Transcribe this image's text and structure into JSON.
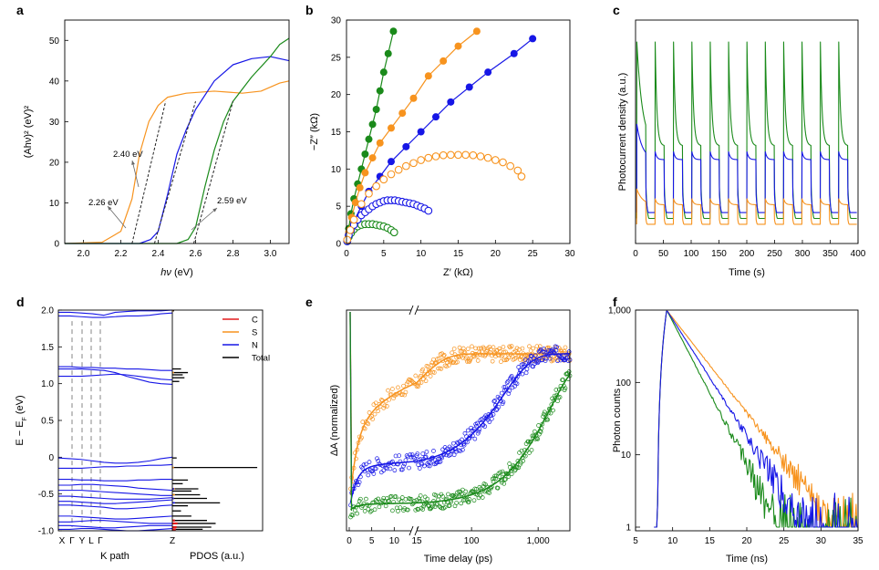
{
  "colors": {
    "green": "#1a8a1a",
    "orange": "#f7931e",
    "blue": "#1616e6",
    "red": "#e31a1c",
    "black": "#000000"
  },
  "chart_data": [
    {
      "panel": "a",
      "type": "line",
      "xlabel_italic": "hν",
      "xlabel_unit": " (eV)",
      "ylabel": "(Ahν)² (eV)²",
      "xlim": [
        1.9,
        3.1
      ],
      "ylim": [
        0,
        55
      ],
      "xticks": [
        "2.0",
        "2.2",
        "2.4",
        "2.6",
        "2.8",
        "3.0"
      ],
      "yticks": [
        "0",
        "10",
        "20",
        "30",
        "40",
        "50"
      ],
      "annotations": [
        "2.26 eV",
        "2.40 eV",
        "2.59 eV"
      ],
      "series": [
        {
          "name": "orange",
          "color": "orange",
          "x": [
            1.9,
            2.1,
            2.2,
            2.26,
            2.3,
            2.35,
            2.4,
            2.45,
            2.55,
            2.7,
            2.85,
            2.95,
            3.05,
            3.1
          ],
          "y": [
            0,
            0.3,
            3,
            11,
            22,
            30,
            34,
            36,
            37,
            37.5,
            37,
            37.5,
            39.5,
            40
          ]
        },
        {
          "name": "blue",
          "color": "blue",
          "x": [
            1.9,
            2.3,
            2.36,
            2.4,
            2.45,
            2.5,
            2.55,
            2.6,
            2.7,
            2.8,
            2.9,
            3.0,
            3.05,
            3.1
          ],
          "y": [
            0,
            0,
            1,
            3,
            12,
            22,
            28,
            33,
            40,
            44,
            45.5,
            46,
            45.5,
            45
          ]
        },
        {
          "name": "green",
          "color": "green",
          "x": [
            1.9,
            2.5,
            2.56,
            2.6,
            2.65,
            2.7,
            2.75,
            2.8,
            2.9,
            3.0,
            3.05,
            3.1
          ],
          "y": [
            0,
            0,
            1,
            4,
            14,
            23,
            30,
            35,
            41,
            46,
            49,
            50.5
          ]
        }
      ],
      "tangents": [
        {
          "color": "black",
          "x": [
            2.26,
            2.44
          ],
          "y": [
            0,
            35
          ]
        },
        {
          "color": "black",
          "x": [
            2.38,
            2.6
          ],
          "y": [
            0,
            35
          ]
        },
        {
          "color": "black",
          "x": [
            2.59,
            2.8
          ],
          "y": [
            0,
            35
          ]
        }
      ]
    },
    {
      "panel": "b",
      "type": "scatter",
      "xlabel": "Z′ (kΩ)",
      "ylabel": "−Z″ (kΩ)",
      "xlim": [
        0,
        30
      ],
      "ylim": [
        0,
        30
      ],
      "xticks": [
        "0",
        "5",
        "10",
        "15",
        "20",
        "25",
        "30"
      ],
      "yticks": [
        "0",
        "5",
        "10",
        "15",
        "20",
        "25",
        "30"
      ],
      "filled": [
        {
          "color": "green",
          "x": [
            0.3,
            0.6,
            1,
            1.5,
            2,
            2.5,
            3,
            3.5,
            4,
            4.5,
            5,
            5.6,
            6.3
          ],
          "y": [
            2,
            4,
            6,
            8,
            10,
            12,
            14,
            16,
            18,
            20.5,
            23,
            25.5,
            28.5
          ]
        },
        {
          "color": "orange",
          "x": [
            0.3,
            0.7,
            1.2,
            1.8,
            2.5,
            3.5,
            4.5,
            6,
            7.5,
            9,
            11,
            13,
            15,
            17.5
          ],
          "y": [
            1.5,
            3.5,
            5.5,
            7.5,
            9.5,
            11.5,
            13.5,
            15.5,
            17.5,
            19.5,
            22.5,
            24.5,
            26.5,
            28.5
          ]
        },
        {
          "color": "blue",
          "x": [
            0.3,
            1,
            2,
            3,
            4.5,
            6,
            8,
            10,
            12,
            14,
            16.5,
            19,
            22.5,
            25
          ],
          "y": [
            1,
            3,
            5,
            7,
            9,
            11,
            13,
            15,
            17,
            19,
            21,
            23,
            25.5,
            27.5
          ]
        }
      ],
      "open": [
        {
          "color": "green",
          "x": [
            0.1,
            0.3,
            0.6,
            1,
            1.5,
            2,
            2.5,
            3,
            3.5,
            4,
            4.5,
            5,
            5.5,
            6,
            6.4
          ],
          "y": [
            0.3,
            0.9,
            1.4,
            1.9,
            2.3,
            2.5,
            2.6,
            2.6,
            2.6,
            2.5,
            2.4,
            2.3,
            2.1,
            1.8,
            1.5
          ]
        },
        {
          "color": "blue",
          "x": [
            0.1,
            0.3,
            0.6,
            1,
            1.5,
            2,
            2.5,
            3,
            3.5,
            4,
            4.5,
            5,
            5.5,
            6,
            6.5,
            7,
            7.5,
            8,
            8.5,
            9,
            9.5,
            10,
            10.5,
            11
          ],
          "y": [
            0.3,
            1.1,
            1.8,
            2.5,
            3.2,
            3.8,
            4.2,
            4.6,
            5,
            5.3,
            5.5,
            5.7,
            5.8,
            5.8,
            5.8,
            5.7,
            5.6,
            5.5,
            5.4,
            5.3,
            5.1,
            4.9,
            4.7,
            4.4
          ]
        },
        {
          "color": "orange",
          "x": [
            0.1,
            0.5,
            1,
            2,
            3,
            4,
            5,
            6,
            7,
            8,
            9,
            10,
            11,
            12,
            13,
            14,
            15,
            16,
            17,
            18,
            19,
            20,
            21,
            22,
            23,
            23.5
          ],
          "y": [
            0.5,
            1.8,
            3.2,
            5.3,
            6.7,
            7.7,
            8.6,
            9.3,
            9.9,
            10.4,
            10.8,
            11.2,
            11.5,
            11.7,
            11.85,
            11.9,
            11.9,
            11.9,
            11.85,
            11.7,
            11.5,
            11.2,
            10.9,
            10.4,
            9.8,
            9
          ]
        }
      ]
    },
    {
      "panel": "c",
      "type": "line",
      "xlabel": "Time (s)",
      "ylabel": "Photocurrent density (a.u.)",
      "xlim": [
        0,
        400
      ],
      "xticks": [
        "0",
        "50",
        "100",
        "150",
        "200",
        "250",
        "300",
        "350",
        "400"
      ],
      "pulses": 12,
      "period_s": 33,
      "series": [
        {
          "name": "green",
          "color": "green",
          "base": 0.1,
          "spike": 1.0,
          "on_level": 0.47,
          "first_peak": 1.0
        },
        {
          "name": "blue",
          "color": "blue",
          "base": 0.13,
          "spike": 0.44,
          "on_level": 0.4,
          "first_peak": 0.58
        },
        {
          "name": "orange",
          "color": "orange",
          "base": 0.07,
          "spike": 0.2,
          "on_level": 0.17,
          "first_peak": 0.25
        }
      ]
    },
    {
      "panel": "d",
      "type": "line",
      "xlabel_left": "K path",
      "xlabel_right": "PDOS (a.u.)",
      "ylabel_prefix": "E − E",
      "ylabel_sub": "F",
      "ylabel_unit": " (eV)",
      "ylim": [
        -1.0,
        2.0
      ],
      "yticks": [
        "-1.0",
        "-0.5",
        "0",
        "0.5",
        "1.0",
        "1.5",
        "2.0"
      ],
      "kpoints": [
        "X",
        "Γ",
        "Y",
        "L",
        "Γ",
        "Z"
      ],
      "legend": [
        "C",
        "S",
        "N",
        "Total"
      ],
      "bands": [
        [
          1.97,
          1.97,
          1.96,
          1.95,
          1.93,
          1.97,
          1.98,
          1.99,
          1.99,
          1.99,
          2.0
        ],
        [
          1.92,
          1.92,
          1.91,
          1.9,
          1.9,
          1.91,
          1.92,
          1.92,
          1.93,
          1.95,
          1.96
        ],
        [
          1.23,
          1.23,
          1.22,
          1.22,
          1.21,
          1.21,
          1.2,
          1.2,
          1.19,
          1.18,
          1.18
        ],
        [
          1.2,
          1.2,
          1.2,
          1.19,
          1.18,
          1.15,
          1.1,
          1.06,
          1.02,
          1.0,
          0.99
        ],
        [
          1.1,
          1.1,
          1.1,
          1.11,
          1.12,
          1.13,
          1.12,
          1.1,
          1.08,
          1.06,
          1.05
        ],
        [
          -0.01,
          -0.02,
          -0.03,
          -0.05,
          -0.07,
          -0.08,
          -0.08,
          -0.07,
          -0.05,
          -0.02,
          0.0
        ],
        [
          -0.15,
          -0.15,
          -0.15,
          -0.14,
          -0.13,
          -0.13,
          -0.12,
          -0.12,
          -0.11,
          -0.11,
          -0.1
        ],
        [
          -0.3,
          -0.3,
          -0.31,
          -0.31,
          -0.32,
          -0.32,
          -0.32,
          -0.31,
          -0.31,
          -0.3,
          -0.3
        ],
        [
          -0.38,
          -0.38,
          -0.37,
          -0.37,
          -0.38,
          -0.39,
          -0.4,
          -0.42,
          -0.43,
          -0.44,
          -0.45
        ],
        [
          -0.45,
          -0.45,
          -0.45,
          -0.46,
          -0.47,
          -0.48,
          -0.49,
          -0.5,
          -0.51,
          -0.52,
          -0.52
        ],
        [
          -0.53,
          -0.53,
          -0.54,
          -0.55,
          -0.56,
          -0.57,
          -0.57,
          -0.57,
          -0.57,
          -0.56,
          -0.55
        ],
        [
          -0.6,
          -0.6,
          -0.61,
          -0.62,
          -0.63,
          -0.63,
          -0.62,
          -0.61,
          -0.6,
          -0.59,
          -0.58
        ],
        [
          -0.65,
          -0.65,
          -0.66,
          -0.67,
          -0.68,
          -0.7,
          -0.7,
          -0.69,
          -0.68,
          -0.66,
          -0.65
        ],
        [
          -0.8,
          -0.8,
          -0.81,
          -0.82,
          -0.83,
          -0.84,
          -0.84,
          -0.83,
          -0.82,
          -0.81,
          -0.8
        ],
        [
          -0.88,
          -0.88,
          -0.87,
          -0.86,
          -0.86,
          -0.87,
          -0.88,
          -0.89,
          -0.9,
          -0.9,
          -0.9
        ],
        [
          -0.93,
          -0.93,
          -0.94,
          -0.95,
          -0.96,
          -0.96,
          -0.95,
          -0.94,
          -0.93,
          -0.93,
          -0.93
        ],
        [
          -0.98,
          -0.98,
          -0.97,
          -0.97,
          -0.98,
          -0.99,
          -1.0,
          -1.0,
          -0.99,
          -0.98,
          -0.97
        ]
      ],
      "pdos_total": [
        [
          1.99,
          0.02
        ],
        [
          1.2,
          0.1
        ],
        [
          1.15,
          0.18
        ],
        [
          1.12,
          0.12
        ],
        [
          1.08,
          0.14
        ],
        [
          1.03,
          0.08
        ],
        [
          -0.01,
          0.05
        ],
        [
          -0.14,
          0.98
        ],
        [
          -0.31,
          0.18
        ],
        [
          -0.36,
          0.12
        ],
        [
          -0.43,
          0.3
        ],
        [
          -0.46,
          0.22
        ],
        [
          -0.51,
          0.32
        ],
        [
          -0.56,
          0.4
        ],
        [
          -0.62,
          0.55
        ],
        [
          -0.66,
          0.18
        ],
        [
          -0.73,
          0.1
        ],
        [
          -0.8,
          0.22
        ],
        [
          -0.86,
          0.4
        ],
        [
          -0.9,
          0.5
        ],
        [
          -0.95,
          0.45
        ],
        [
          -0.98,
          0.35
        ]
      ],
      "pdos_c": [
        [
          -0.86,
          0.03
        ],
        [
          -0.9,
          0.06
        ],
        [
          -0.95,
          0.05
        ],
        [
          -0.98,
          0.04
        ]
      ],
      "pdos_s": [
        [
          1.99,
          0.01
        ],
        [
          1.15,
          0.02
        ],
        [
          -0.14,
          0.02
        ],
        [
          -0.43,
          0.03
        ],
        [
          -0.51,
          0.03
        ],
        [
          -0.56,
          0.02
        ],
        [
          -0.9,
          0.03
        ],
        [
          -0.95,
          0.03
        ]
      ],
      "pdos_n": [
        [
          -0.43,
          0.02
        ],
        [
          -0.56,
          0.02
        ],
        [
          -0.62,
          0.03
        ],
        [
          -0.9,
          0.02
        ]
      ]
    },
    {
      "panel": "e",
      "type": "scatter",
      "xlabel": "Time delay (ps)",
      "ylabel": "ΔA (normalized)",
      "xticks": [
        "0",
        "5",
        "10",
        "15",
        "100",
        "1,000"
      ],
      "series": [
        {
          "color": "orange",
          "fast": 0.5,
          "slow": 0.5,
          "tau": 15
        },
        {
          "color": "blue",
          "fast": 0.28,
          "slow": 0.72,
          "tau": 300
        },
        {
          "color": "green",
          "fast": 0.04,
          "slow": 0.96,
          "tau": 1500
        }
      ]
    },
    {
      "panel": "f",
      "type": "line",
      "xlabel": "Time (ns)",
      "ylabel": "Photon counts",
      "xlim": [
        5,
        35
      ],
      "ylog": [
        1,
        1000
      ],
      "xticks": [
        "5",
        "10",
        "15",
        "20",
        "25",
        "30",
        "35"
      ],
      "yticks": [
        "1",
        "10",
        "100",
        "1,000"
      ],
      "series": [
        {
          "color": "orange",
          "tau": 3.3,
          "t0": 9.2
        },
        {
          "color": "green",
          "tau": 2.2,
          "t0": 9.2
        },
        {
          "color": "blue",
          "tau": 2.7,
          "t0": 9.2
        }
      ]
    }
  ]
}
